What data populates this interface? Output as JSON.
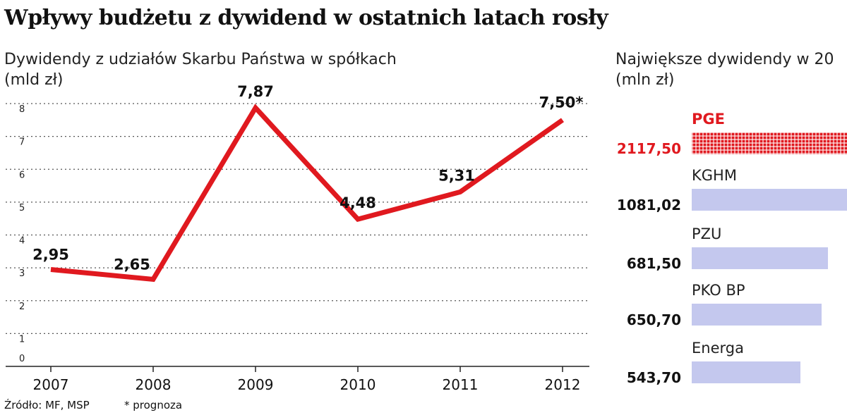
{
  "title": "Wpływy budżetu z dywidend w ostatnich latach rosły",
  "footer": {
    "source": "Źródło: MF, MSP",
    "note": "* prognoza"
  },
  "colors": {
    "line": "#e0191f",
    "highlight": "#e0191f",
    "bar": "#c4c8ee",
    "grid": "#555555"
  },
  "chart_data": [
    {
      "type": "line",
      "title": "Dywidendy z udziałów Skarbu Państwa w spółkach",
      "ylabel": "(mld zł)",
      "xlabel": "",
      "x": [
        "2007",
        "2008",
        "2009",
        "2010",
        "2011",
        "2012"
      ],
      "yticks": [
        "0",
        "1",
        "2",
        "3",
        "4",
        "5",
        "6",
        "7",
        "8"
      ],
      "ylim": [
        0,
        8
      ],
      "grid": true,
      "series": [
        {
          "values": [
            2.95,
            2.65,
            7.87,
            4.48,
            5.31,
            7.5
          ],
          "labels": [
            "2,95",
            "2,65",
            "7,87",
            "4,48",
            "5,31",
            "7,50*"
          ]
        }
      ]
    },
    {
      "type": "bar",
      "title": "Największe dywidendy w 20",
      "ylabel": "(mln zł)",
      "orientation": "horizontal",
      "categories": [
        "PGE",
        "KGHM",
        "PZU",
        "PKO BP",
        "Energa"
      ],
      "values": [
        2117.5,
        1081.02,
        681.5,
        650.7,
        543.7
      ],
      "value_labels": [
        "2117,50",
        "1081,02",
        "681,50",
        "650,70",
        "543,70"
      ],
      "highlight": "PGE"
    }
  ]
}
